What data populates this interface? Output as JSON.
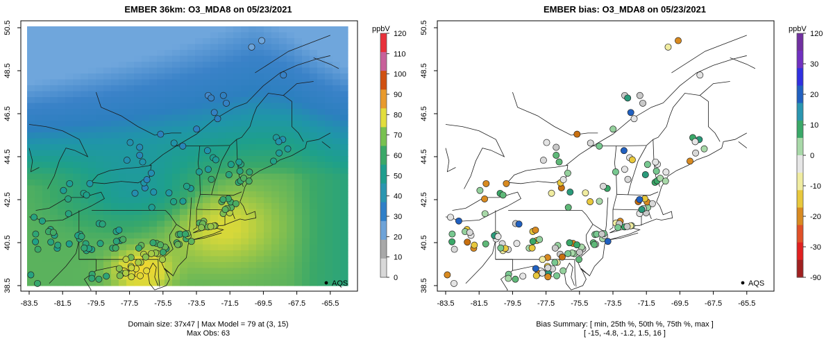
{
  "left": {
    "title": "EMBER 36km: O3_MDA8 on 05/23/2021",
    "units": "ppbV",
    "legend_label": "AQS",
    "colorbar_ticks": [
      "0",
      "10",
      "20",
      "30",
      "40",
      "50",
      "60",
      "70",
      "80",
      "90",
      "100",
      "110",
      "120"
    ],
    "colorbar_colors": [
      "#d8d8d8",
      "#a8a8a8",
      "#6ea3d8",
      "#2f7fc8",
      "#2a96b0",
      "#1f9e8e",
      "#3aa868",
      "#78c150",
      "#e2dd3c",
      "#e89a2c",
      "#d05010",
      "#c8609a",
      "#e8303a"
    ],
    "caption_line1": "Domain size: 37x47 | Max Model = 79 at (3, 15)",
    "caption_line2": "Max Obs: 63"
  },
  "right": {
    "title": "EMBER bias: O3_MDA8 on 05/23/2021",
    "units": "ppbV",
    "legend_label": "AQS",
    "colorbar_ticks": [
      "120",
      "30",
      "20",
      "10",
      "0",
      "-10",
      "-20",
      "-30",
      "-90"
    ],
    "colorbar_colors": [
      "#a02020",
      "#e02020",
      "#e05028",
      "#d88a20",
      "#e8c83c",
      "#f0eca0",
      "#e6e6e6",
      "#a8d8a8",
      "#3aa868",
      "#2a96b0",
      "#2060c0",
      "#3030e0",
      "#7030c0",
      "#7030a0"
    ],
    "caption_line1": "Bias Summary: [ min, 25th %, 50th %, 75th %, max ]",
    "caption_line2": "[ -15,   -4.8,   -1.2,   1.5,   16 ]"
  },
  "axes": {
    "x_ticks": [
      "-83.5",
      "-81.5",
      "-79.5",
      "-77.5",
      "-75.5",
      "-73.5",
      "-71.5",
      "-69.5",
      "-67.5",
      "-65.5"
    ],
    "y_ticks": [
      "38.5",
      "40.5",
      "42.5",
      "44.5",
      "46.5",
      "48.5",
      "50.5"
    ]
  },
  "chart_data": [
    {
      "type": "heatmap",
      "title": "EMBER 36km: O3_MDA8 on 05/23/2021",
      "units": "ppbV",
      "xlim": [
        -84,
        -65
      ],
      "ylim": [
        38.5,
        50.5
      ],
      "colorbar_range": [
        0,
        120
      ],
      "domain_size": "37x47",
      "max_model": 79,
      "max_model_location": [
        3,
        15
      ],
      "max_obs": 63,
      "legend": [
        "AQS"
      ],
      "regions_approx_ppbV": [
        {
          "region": "northern Maine / Quebec",
          "value": 40
        },
        {
          "region": "New York / Pennsylvania interior",
          "value": 48
        },
        {
          "region": "Atlantic offshore south of Cape Cod",
          "value": 66
        },
        {
          "region": "Chesapeake Bay plume",
          "value": 76
        }
      ]
    },
    {
      "type": "scatter",
      "title": "EMBER bias: O3_MDA8 on 05/23/2021",
      "units": "ppbV",
      "xlim": [
        -84,
        -65
      ],
      "ylim": [
        38.5,
        50.5
      ],
      "colorbar_ticks": [
        120,
        30,
        20,
        10,
        0,
        -10,
        -20,
        -30,
        -90
      ],
      "legend": [
        "AQS"
      ],
      "bias_summary": {
        "min": -15,
        "p25": -4.8,
        "p50": -1.2,
        "p75": 1.5,
        "max": 16
      }
    }
  ]
}
